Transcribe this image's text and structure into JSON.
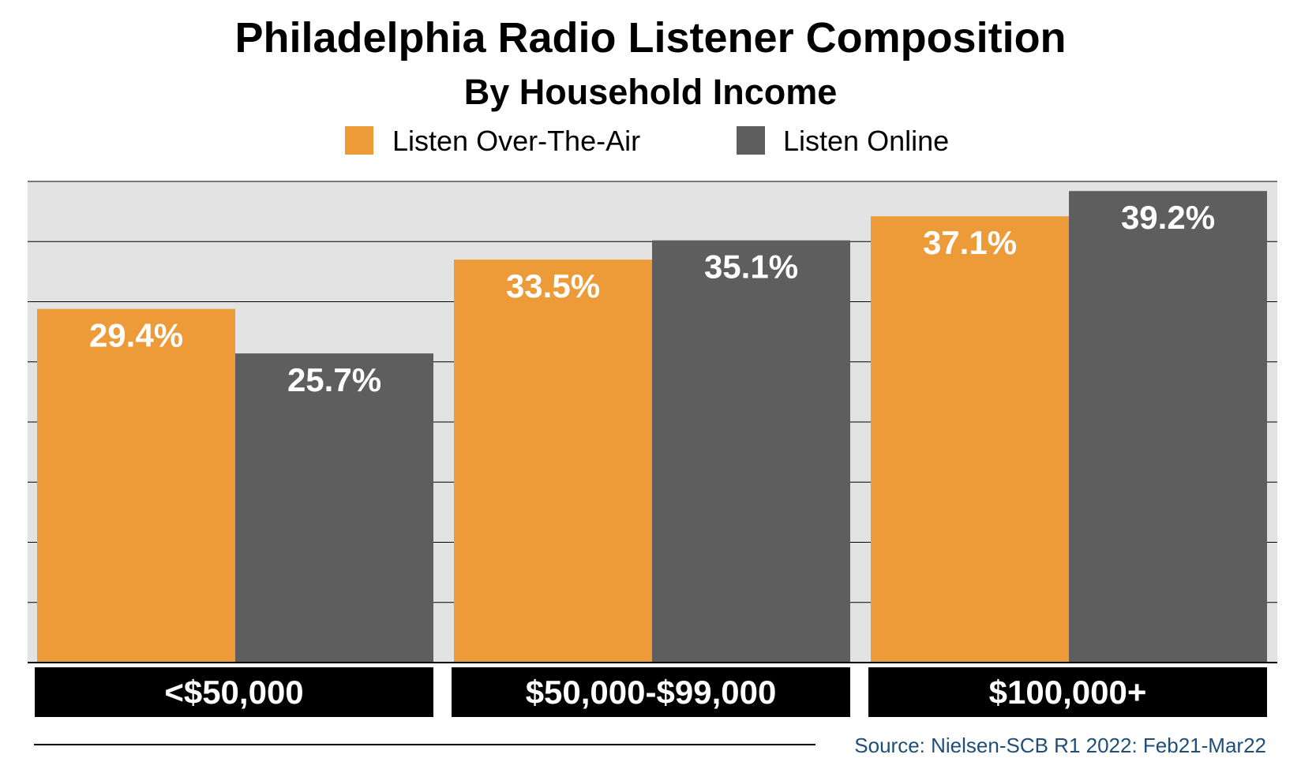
{
  "chart_data": {
    "type": "bar",
    "title": "Philadelphia Radio Listener Composition",
    "subtitle": "By Household Income",
    "categories": [
      "<$50,000",
      "$50,000-$99,000",
      "$100,000+"
    ],
    "series": [
      {
        "name": "Listen Over-The-Air",
        "values": [
          29.4,
          33.5,
          37.1
        ],
        "labels": [
          "29.4%",
          "33.5%",
          "37.1%"
        ],
        "color": "#ED9B38"
      },
      {
        "name": "Listen Online",
        "values": [
          25.7,
          35.1,
          39.2
        ],
        "labels": [
          "25.7%",
          "35.1%",
          "39.2%"
        ],
        "color": "#5E5E5E"
      }
    ],
    "ylim": [
      0,
      40
    ],
    "grid": true,
    "legend_position": "top-center",
    "plot_background": "#E3E3E3",
    "category_label_background": "#000000",
    "source": "Source: Nielsen-SCB R1 2022: Feb21-Mar22"
  }
}
